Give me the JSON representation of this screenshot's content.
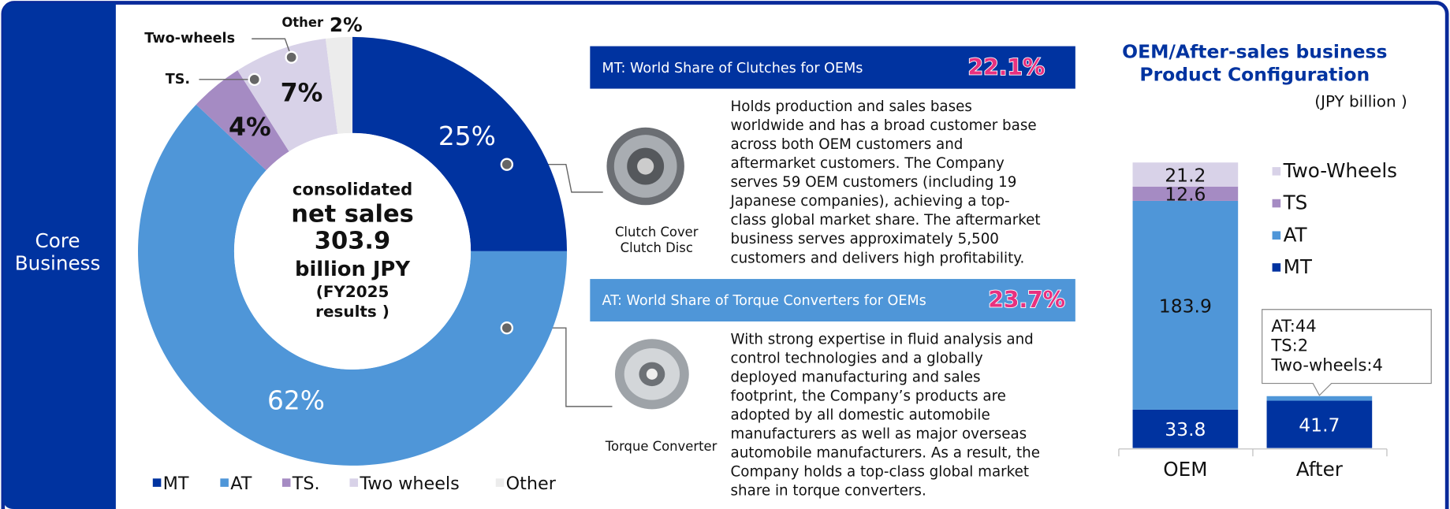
{
  "side_label": [
    "Core",
    "Business"
  ],
  "chart_data": [
    {
      "type": "donut",
      "categories": [
        "MT",
        "AT",
        "TS.",
        "Two wheels",
        "Other"
      ],
      "values": [
        25,
        62,
        4,
        7,
        2
      ],
      "value_labels": [
        "25%",
        "62%",
        "4%",
        "7%",
        "2%"
      ],
      "colors": [
        "#0033a0",
        "#4f96d8",
        "#a58bc3",
        "#d8d2e8",
        "#ececec"
      ],
      "annotations": [
        "Two-wheels",
        "TS.",
        "Other"
      ],
      "center_text": [
        "consolidated",
        "net sales",
        "303.9",
        "billion JPY",
        "(FY2025",
        "results )"
      ],
      "legend": "bottom"
    },
    {
      "type": "stacked_bar",
      "title": [
        "OEM/After-sales business",
        "Product Configuration"
      ],
      "subtitle": "(JPY billion )",
      "categories": [
        "OEM",
        "After"
      ],
      "series": [
        {
          "name": "MT",
          "color": "#0033a0",
          "values": [
            33.8,
            41.7
          ],
          "value_labels": [
            "33.8",
            "41.7"
          ]
        },
        {
          "name": "AT",
          "color": "#4f96d8",
          "values": [
            183.9,
            4
          ],
          "value_labels": [
            "183.9",
            null
          ]
        },
        {
          "name": "TS",
          "color": "#a58bc3",
          "values": [
            12.6,
            null
          ],
          "value_labels": [
            "12.6",
            null
          ]
        },
        {
          "name": "Two-Wheels",
          "color": "#d8d2e8",
          "values": [
            21.2,
            null
          ],
          "value_labels": [
            "21.2",
            null
          ]
        }
      ],
      "annotation": [
        "AT:44",
        "TS:2",
        "Two-wheels:4"
      ],
      "legend": "right"
    }
  ],
  "panels": [
    {
      "title": "MT: World Share of Clutches for OEMs",
      "share": "22.1%",
      "caption": [
        "Clutch Cover",
        "Clutch Disc"
      ],
      "body": [
        "Holds production and sales bases",
        "worldwide and has a broad customer base",
        "across both OEM customers and",
        "aftermarket customers. The Company",
        "serves 59 OEM customers (including 19",
        "Japanese companies), achieving a top-",
        "class global market share. The aftermarket",
        "business serves approximately 5,500",
        "customers and delivers high profitability."
      ]
    },
    {
      "title": "AT: World Share of Torque Converters for OEMs",
      "share": "23.7%",
      "caption": [
        "Torque Converter"
      ],
      "body": [
        "With strong expertise in fluid analysis and",
        "control technologies and a globally",
        "deployed manufacturing and sales",
        "footprint, the Company’s products are",
        "adopted by all domestic automobile",
        "manufacturers as well as major overseas",
        "automobile manufacturers. As a result, the",
        "Company holds a top-class global market",
        "share in torque converters."
      ]
    }
  ]
}
